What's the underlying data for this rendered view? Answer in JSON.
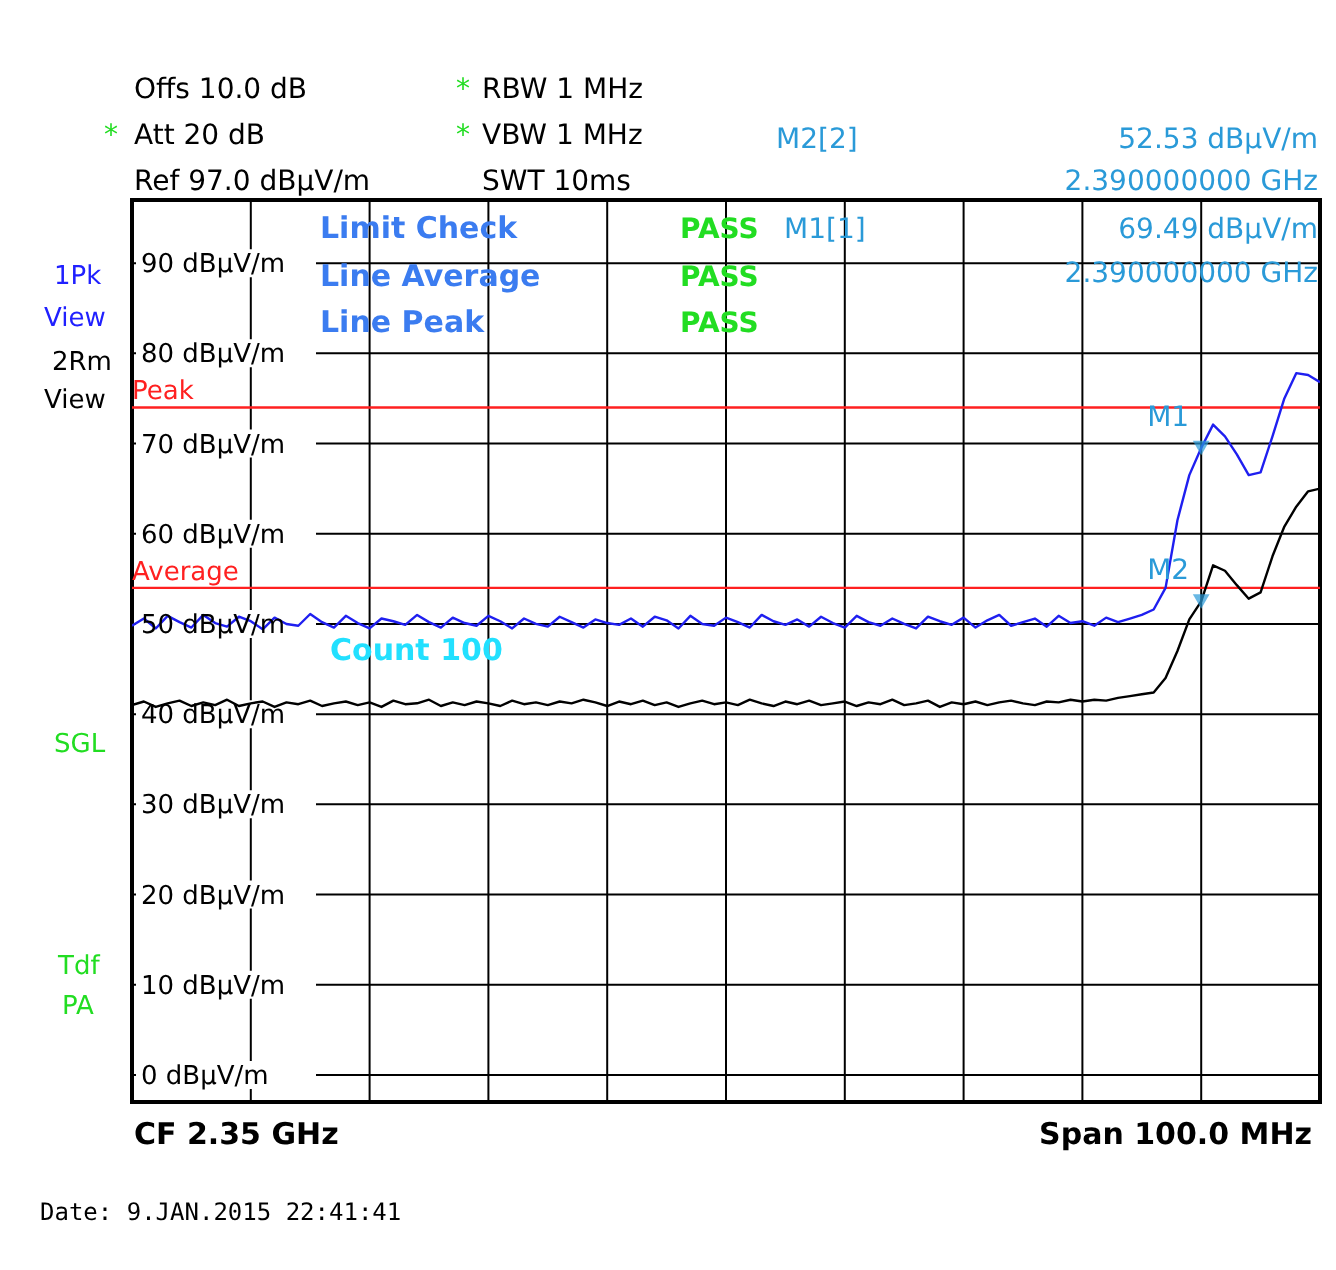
{
  "chart_data": {
    "type": "line",
    "categories": [
      null,
      null,
      null,
      null,
      null,
      null,
      null,
      null,
      null,
      null,
      null,
      null,
      null,
      null,
      null,
      null,
      null,
      null,
      null,
      null,
      null,
      null,
      null,
      null,
      null,
      null,
      null,
      null,
      null,
      null,
      null,
      null,
      null,
      null,
      null,
      null,
      null,
      null,
      null,
      null,
      null,
      null,
      null,
      null,
      null,
      null,
      null,
      null,
      null,
      null,
      null,
      null,
      null,
      null,
      null,
      null,
      null,
      null,
      null,
      null,
      null,
      null,
      null,
      null,
      null,
      null,
      null,
      null,
      null,
      null,
      null,
      null,
      null,
      null,
      null,
      null,
      null,
      null,
      null,
      null,
      null,
      null,
      null,
      null,
      null,
      null,
      null,
      null,
      null,
      null,
      null,
      null,
      null,
      null,
      null,
      null,
      null,
      null,
      null,
      null,
      null
    ],
    "ylim": [
      -3,
      97
    ],
    "yticks": [
      {
        "value": 0,
        "label": "0 dBµV/m"
      },
      {
        "value": 10,
        "label": "10 dBµV/m"
      },
      {
        "value": 20,
        "label": "20 dBµV/m"
      },
      {
        "value": 30,
        "label": "30 dBµV/m"
      },
      {
        "value": 40,
        "label": "40 dBµV/m"
      },
      {
        "value": 50,
        "label": "50 dBµV/m"
      },
      {
        "value": 60,
        "label": "60 dBµV/m"
      },
      {
        "value": 70,
        "label": "70 dBµV/m"
      },
      {
        "value": 80,
        "label": "80 dBµV/m"
      },
      {
        "value": 90,
        "label": "90 dBµV/m"
      }
    ],
    "grid": true,
    "series": [
      {
        "color": "#1f1ff0",
        "values": [
          49.8,
          50.6,
          49.5,
          50.9,
          50.2,
          49.6,
          51.0,
          50.1,
          49.7,
          50.8,
          50.3,
          49.4,
          50.7,
          50.0,
          49.8,
          51.1,
          50.2,
          49.6,
          50.9,
          50.1,
          49.5,
          50.6,
          50.3,
          49.9,
          51.0,
          50.2,
          49.6,
          50.7,
          50.1,
          49.8,
          50.9,
          50.3,
          49.5,
          50.6,
          50.0,
          49.7,
          50.8,
          50.2,
          49.6,
          50.5,
          50.1,
          49.9,
          50.6,
          49.7,
          50.8,
          50.4,
          49.5,
          50.9,
          50.0,
          49.8,
          50.7,
          50.2,
          49.6,
          51.0,
          50.3,
          49.9,
          50.5,
          49.7,
          50.8,
          50.1,
          49.6,
          50.9,
          50.2,
          49.8,
          50.6,
          50.0,
          49.5,
          50.8,
          50.3,
          49.9,
          50.7,
          49.6,
          50.4,
          51.0,
          49.8,
          50.2,
          50.6,
          49.7,
          50.9,
          50.1,
          50.3,
          49.8,
          50.7,
          50.2,
          50.6,
          51.0,
          51.6,
          54.0,
          61.5,
          66.5,
          69.5,
          72.1,
          70.8,
          68.8,
          66.5,
          66.8,
          70.8,
          75.0,
          77.8,
          77.6,
          76.8
        ]
      },
      {
        "color": "#000000",
        "values": [
          41.0,
          41.4,
          40.8,
          41.2,
          41.5,
          40.9,
          41.3,
          41.0,
          41.6,
          40.9,
          41.2,
          41.4,
          40.8,
          41.3,
          41.1,
          41.5,
          40.9,
          41.2,
          41.4,
          41.0,
          41.3,
          40.8,
          41.5,
          41.1,
          41.2,
          41.6,
          40.9,
          41.3,
          41.0,
          41.4,
          41.2,
          40.9,
          41.5,
          41.1,
          41.3,
          41.0,
          41.4,
          41.2,
          41.6,
          41.3,
          40.9,
          41.4,
          41.1,
          41.5,
          41.0,
          41.3,
          40.8,
          41.2,
          41.5,
          41.1,
          41.3,
          41.0,
          41.6,
          41.2,
          40.9,
          41.4,
          41.1,
          41.5,
          41.0,
          41.2,
          41.4,
          40.9,
          41.3,
          41.1,
          41.6,
          41.0,
          41.2,
          41.5,
          40.8,
          41.3,
          41.1,
          41.4,
          41.0,
          41.3,
          41.5,
          41.2,
          41.0,
          41.4,
          41.3,
          41.6,
          41.4,
          41.6,
          41.5,
          41.8,
          42.0,
          42.2,
          42.4,
          44.0,
          47.0,
          50.5,
          52.5,
          56.5,
          55.9,
          54.3,
          52.8,
          53.5,
          57.5,
          60.8,
          63.0,
          64.7,
          65.0
        ]
      },
      {
        "type": "scatter",
        "name": "M1",
        "color": "#2a9ad8",
        "marker": "triangle",
        "values": [
          null,
          null,
          null,
          null,
          null,
          null,
          null,
          null,
          null,
          null,
          null,
          null,
          null,
          null,
          null,
          null,
          null,
          null,
          null,
          null,
          null,
          null,
          null,
          null,
          null,
          null,
          null,
          null,
          null,
          null,
          null,
          null,
          null,
          null,
          null,
          null,
          null,
          null,
          null,
          null,
          null,
          null,
          null,
          null,
          null,
          null,
          null,
          null,
          null,
          null,
          null,
          null,
          null,
          null,
          null,
          null,
          null,
          null,
          null,
          null,
          null,
          null,
          null,
          null,
          null,
          null,
          null,
          null,
          null,
          null,
          null,
          null,
          null,
          null,
          null,
          null,
          null,
          null,
          null,
          null,
          null,
          null,
          null,
          null,
          null,
          null,
          null,
          null,
          null,
          null,
          69.5,
          null,
          null,
          null,
          null,
          null,
          null,
          null,
          null,
          null,
          null
        ]
      },
      {
        "type": "scatter",
        "name": "M2",
        "color": "#2a9ad8",
        "marker": "triangle",
        "values": [
          null,
          null,
          null,
          null,
          null,
          null,
          null,
          null,
          null,
          null,
          null,
          null,
          null,
          null,
          null,
          null,
          null,
          null,
          null,
          null,
          null,
          null,
          null,
          null,
          null,
          null,
          null,
          null,
          null,
          null,
          null,
          null,
          null,
          null,
          null,
          null,
          null,
          null,
          null,
          null,
          null,
          null,
          null,
          null,
          null,
          null,
          null,
          null,
          null,
          null,
          null,
          null,
          null,
          null,
          null,
          null,
          null,
          null,
          null,
          null,
          null,
          null,
          null,
          null,
          null,
          null,
          null,
          null,
          null,
          null,
          null,
          null,
          null,
          null,
          null,
          null,
          null,
          null,
          null,
          null,
          null,
          null,
          null,
          null,
          null,
          null,
          null,
          null,
          null,
          null,
          52.5,
          null,
          null,
          null,
          null,
          null,
          null,
          null,
          null,
          null,
          null
        ]
      }
    ],
    "ref_lines": [
      {
        "axis": "y",
        "value": 74,
        "label": "Peak",
        "color": "#ff2020"
      },
      {
        "axis": "y",
        "value": 54,
        "label": "Average",
        "color": "#ff2020"
      }
    ],
    "annotations": [
      "Offs 10.0 dB",
      "*",
      "Att  20 dB",
      "Ref  97.0 dBµV/m",
      "*",
      "RBW 1 MHz",
      "*",
      "VBW 1 MHz",
      "SWT 10ms",
      "M2[2]",
      "52.53 dBµV/m",
      "2.390000000 GHz",
      "M1[1]",
      "69.49 dBµV/m",
      "2.390000000 GHz",
      "Limit Check",
      "PASS",
      "Line Average",
      "PASS",
      "Line Peak",
      "PASS",
      "1Pk",
      "View",
      "2Rm",
      "View",
      "SGL",
      "Tdf",
      "PA",
      "Count 100",
      "CF 2.35 GHz",
      "Span 100.0 MHz",
      "Date: 9.JAN.2015  22:41:41"
    ]
  }
}
